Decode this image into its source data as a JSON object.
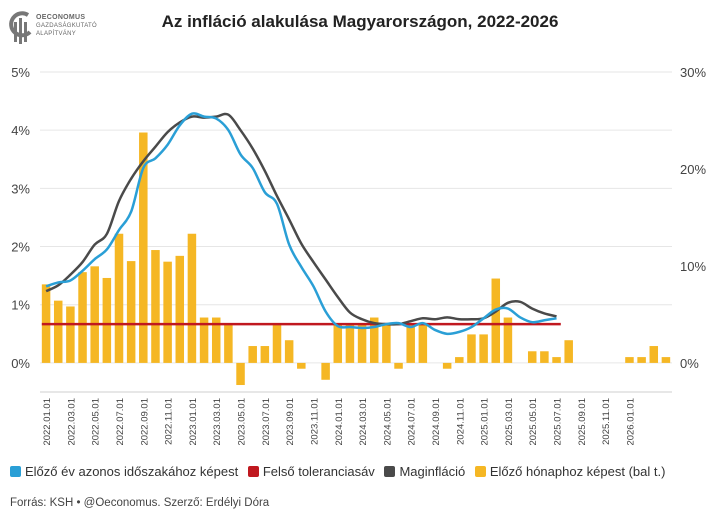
{
  "logo": {
    "lines": [
      "OECONOMUS",
      "GAZDASÁGKUTATÓ",
      "ALAPÍTVÁNY"
    ],
    "color": "#777777"
  },
  "title": "Az infláció alakulása Magyarországon, 2022-2026",
  "footer": "Forrás: KSH • @Oeconomus. Szerző: Erdélyi Dóra",
  "colors": {
    "bar": "#f5b724",
    "yoy": "#2a9fd6",
    "tolerance": "#c0181f",
    "core": "#4a4a4a",
    "grid": "#e6e6e6"
  },
  "legend": [
    {
      "label": "Előző év azonos időszakához képest",
      "color": "#2a9fd6"
    },
    {
      "label": "Felső toleranciasáv",
      "color": "#c0181f"
    },
    {
      "label": "Maginfláció",
      "color": "#4a4a4a"
    },
    {
      "label": "Előző hónaphoz képest (bal t.)",
      "color": "#f5b724"
    }
  ],
  "chart_data": {
    "type": "bar+line",
    "title": "Az infláció alakulása Magyarországon, 2022-2026",
    "left_axis": {
      "ylim": [
        -0.5,
        5
      ],
      "ticks": [
        "5%",
        "4%",
        "3%",
        "2%",
        "1%",
        "0%"
      ],
      "tick_values": [
        5,
        4,
        3,
        2,
        1,
        0
      ]
    },
    "right_axis": {
      "ylim": [
        -3,
        30
      ],
      "ticks": [
        "30%",
        "20%",
        "10%",
        "0%"
      ],
      "tick_values": [
        30,
        20,
        10,
        0
      ]
    },
    "x_tick_labels": [
      "2022.01.01",
      "2022.03.01",
      "2022.05.01",
      "2022.07.01",
      "2022.09.01",
      "2022.11.01",
      "2023.01.01",
      "2023.03.01",
      "2023.05.01",
      "2023.07.01",
      "2023.09.01",
      "2023.11.01",
      "2024.01.01",
      "2024.03.01",
      "2024.05.01",
      "2024.07.01",
      "2024.09.01",
      "2024.11.01",
      "2025.01.01",
      "2025.03.01",
      "2025.05.01",
      "2025.07.01",
      "2025.09.01",
      "2025.11.01",
      "2026.01.01"
    ],
    "series": [
      {
        "name": "Előző hónaphoz képest (bal t.)",
        "type": "bar",
        "axis": "left",
        "start": "2022.01",
        "values": [
          1.35,
          1.07,
          0.97,
          1.56,
          1.66,
          1.46,
          2.22,
          1.75,
          3.96,
          1.94,
          1.74,
          1.84,
          2.22,
          0.78,
          0.78,
          0.68,
          -0.38,
          0.29,
          0.29,
          0.68,
          0.39,
          -0.1,
          0,
          -0.29,
          0.68,
          0.68,
          0.68,
          0.78,
          0.68,
          -0.1,
          0.68,
          0.68,
          0,
          -0.1,
          0.1,
          0.49,
          0.49,
          1.45,
          0.78,
          0,
          0.2,
          0.2,
          0.1,
          0.39,
          0,
          0,
          0,
          0,
          0.1,
          0.1,
          0.29,
          0.1
        ]
      },
      {
        "name": "Előző év azonos időszakához képest",
        "type": "line",
        "axis": "right",
        "start": "2022.01",
        "values": [
          7.9,
          8.3,
          8.5,
          9.5,
          10.7,
          11.7,
          13.7,
          15.6,
          20.1,
          21.1,
          22.5,
          24.5,
          25.7,
          25.4,
          25.2,
          24.0,
          21.5,
          20.1,
          17.6,
          16.4,
          12.2,
          9.9,
          7.9,
          5.3,
          3.8,
          3.7,
          3.6,
          3.7,
          4.0,
          4.1,
          3.7,
          4.1,
          3.4,
          3.0,
          3.2,
          3.7,
          4.6,
          5.5,
          5.6,
          4.7,
          4.2,
          4.4,
          4.6
        ]
      },
      {
        "name": "Maginfláció",
        "type": "line",
        "axis": "right",
        "start": "2022.01",
        "values": [
          7.4,
          8.0,
          9.1,
          10.4,
          12.2,
          13.3,
          16.7,
          19.0,
          20.8,
          22.3,
          23.8,
          24.8,
          25.4,
          25.3,
          25.4,
          25.6,
          24.0,
          22.1,
          19.8,
          17.2,
          14.8,
          12.3,
          10.4,
          8.6,
          6.8,
          5.2,
          4.5,
          4.1,
          4.0,
          4.0,
          4.3,
          4.6,
          4.5,
          4.7,
          4.5,
          4.5,
          4.6,
          5.3,
          6.2,
          6.3,
          5.6,
          5.1,
          4.8
        ]
      },
      {
        "name": "Felső toleranciasáv",
        "type": "line",
        "axis": "right",
        "value": 4,
        "from": "2022.01",
        "to": "2025.07"
      }
    ]
  }
}
